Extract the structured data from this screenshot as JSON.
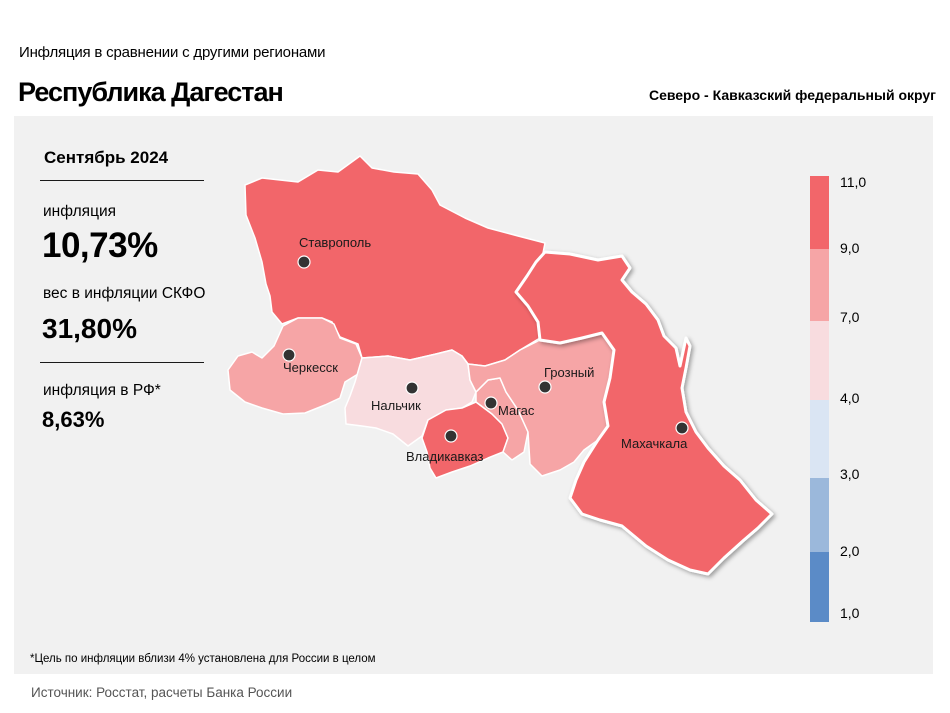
{
  "header": {
    "subtitle": "Инфляция  в сравнении  с другими  регионами",
    "title": "Республика Дагестан",
    "district": "Северо - Кавказский федеральный округ"
  },
  "stats": {
    "period": "Сентябрь 2024",
    "inflation_label": "инфляция",
    "inflation_value": "10,73%",
    "weight_label": "вес в инфляции  СКФО",
    "weight_value": "31,80%",
    "rf_label": "инфляция  в РФ*",
    "rf_value": "8,63%"
  },
  "map": {
    "regions": [
      {
        "name": "Ставрополь",
        "color": "#f2666a"
      },
      {
        "name": "Черкесск",
        "color": "#f6a5a6"
      },
      {
        "name": "Нальчик",
        "color": "#f8dcdf"
      },
      {
        "name": "Владикавказ",
        "color": "#f2666a"
      },
      {
        "name": "Магас",
        "color": "#f6a5a6"
      },
      {
        "name": "Грозный",
        "color": "#f6a5a6"
      },
      {
        "name": "Махачкала",
        "color": "#f2666a"
      }
    ]
  },
  "legend": {
    "ticks": [
      "11,0",
      "9,0",
      "7,0",
      "4,0",
      "3,0",
      "2,0",
      "1,0"
    ],
    "colors": [
      "#f2666a",
      "#f6a5a6",
      "#f8dcdf",
      "#dae5f3",
      "#9bb8db",
      "#5b8bc7"
    ]
  },
  "footnote": "*Цель по инфляции вблизи 4% установлена для России в целом",
  "source": "Источник: Росстат, расчеты Банка России"
}
